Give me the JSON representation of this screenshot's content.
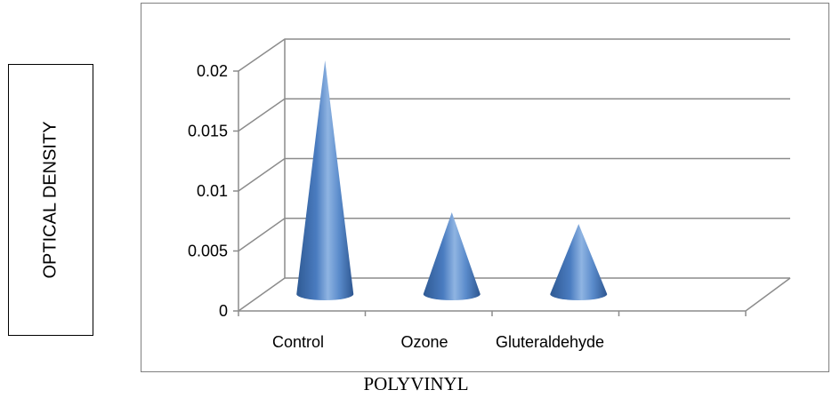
{
  "chart_data": {
    "type": "bar",
    "style": "3d-cone",
    "categories": [
      "Control",
      "Ozone",
      "Gluteraldehyde"
    ],
    "values": [
      0.02,
      0.007,
      0.006
    ],
    "ylabel": "OPTICAL DENSITY",
    "xlabel": "POLYVINYL",
    "ylim": [
      0,
      0.02
    ],
    "yticks": [
      "0",
      "0.005",
      "0.01",
      "0.015",
      "0.02"
    ],
    "grid": true,
    "legend": "none",
    "colors": {
      "cone_light": "#7fa8dc",
      "cone_mid": "#4a7cc0",
      "cone_dark": "#2f5a94",
      "gridline": "#8c8c8c"
    }
  }
}
